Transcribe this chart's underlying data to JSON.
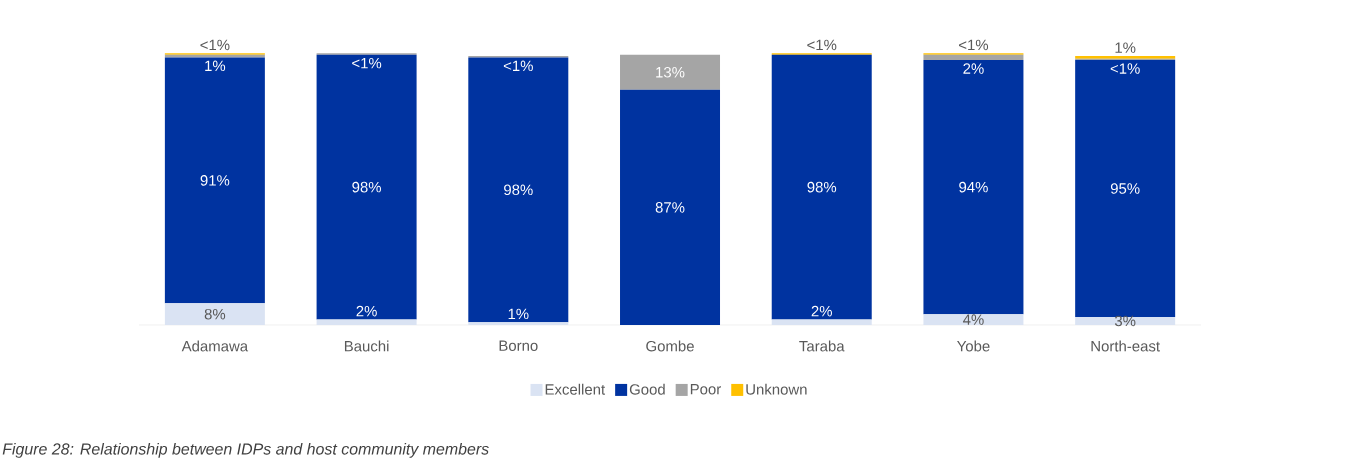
{
  "chart_data": {
    "type": "bar",
    "stacked": true,
    "categories": [
      "Adamawa",
      "Bauchi",
      "Borno",
      "Gombe",
      "Taraba",
      "Yobe",
      "North-east"
    ],
    "series": [
      {
        "name": "Excellent",
        "color": "#dae3f3",
        "values": [
          8,
          2,
          1,
          0,
          2,
          4,
          3
        ],
        "value_labels": [
          "8%",
          "2%",
          "1%",
          null,
          "2%",
          "4%",
          "3%"
        ]
      },
      {
        "name": "Good",
        "color": "#0033a0",
        "values": [
          91,
          98,
          98,
          87,
          98,
          94,
          95
        ],
        "value_labels": [
          "91%",
          "98%",
          "98%",
          "87%",
          "98%",
          "94%",
          "95%"
        ]
      },
      {
        "name": "Poor",
        "color": "#a5a5a5",
        "values": [
          1,
          0.5,
          0.5,
          13,
          0,
          2,
          0.5
        ],
        "value_labels": [
          "1%",
          "<1%",
          "<1%",
          "13%",
          null,
          "2%",
          "<1%"
        ]
      },
      {
        "name": "Unknown",
        "color": "#ffc000",
        "values": [
          0.5,
          0,
          0,
          0,
          0.5,
          0.5,
          1
        ],
        "value_labels": [
          "<1%",
          null,
          null,
          null,
          "<1%",
          "<1%",
          "1%"
        ]
      }
    ],
    "ylim": [
      0,
      101
    ],
    "tick_labels": "x",
    "legend": "bottom",
    "annotations": [
      "Figure 28: Relationship between IDPs and host community members"
    ]
  }
}
